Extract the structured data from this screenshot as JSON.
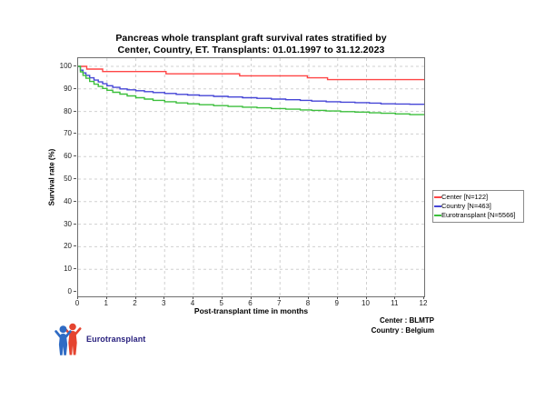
{
  "title": {
    "line1": "Pancreas whole transplant graft survival rates stratified by",
    "line2": "Center, Country, ET. Transplants: 01.01.1997 to 31.12.2023"
  },
  "axes": {
    "x": {
      "label": "Post-transplant time in months",
      "min": 0,
      "max": 12,
      "ticks": [
        0,
        1,
        2,
        3,
        4,
        5,
        6,
        7,
        8,
        9,
        10,
        11,
        12
      ]
    },
    "y": {
      "label": "Survival rate (%)",
      "min": 0,
      "max": 100,
      "ticks": [
        0,
        10,
        20,
        30,
        40,
        50,
        60,
        70,
        80,
        90,
        100
      ]
    }
  },
  "footer": {
    "center": "Center : BLMTP",
    "country": "Country : Belgium",
    "logo_text": "Eurotransplant"
  },
  "colors": {
    "center": "#ff4545",
    "country": "#4545d6",
    "eurotransplant": "#3cbf3c",
    "grid": "#d0d0d0",
    "frame": "#6f6f6f",
    "logo_blue": "#2f6bc4",
    "logo_red": "#e54430",
    "logo_text": "#29217e"
  },
  "chart_data": {
    "type": "line",
    "subtype": "kaplan-meier-step",
    "title": "Pancreas whole transplant graft survival rates stratified by Center, Country, ET. Transplants: 01.01.1997 to 31.12.2023",
    "xlabel": "Post-transplant time in months",
    "ylabel": "Survival rate (%)",
    "xlim": [
      0,
      12
    ],
    "ylim": [
      0,
      100
    ],
    "grid": "dashed",
    "legend_position": "right-outside",
    "series": [
      {
        "name": "Center",
        "label": "Center [N=122]",
        "n": 122,
        "color": "#ff4545",
        "points": [
          [
            0,
            100
          ],
          [
            0.3,
            98.8
          ],
          [
            0.85,
            97.7
          ],
          [
            3.05,
            96.7
          ],
          [
            5.6,
            95.8
          ],
          [
            7.95,
            94.9
          ],
          [
            8.65,
            94.1
          ],
          [
            12,
            94.1
          ]
        ]
      },
      {
        "name": "Country",
        "label": "Country [N=463]",
        "n": 463,
        "color": "#4545d6",
        "points": [
          [
            0,
            100
          ],
          [
            0.08,
            98.3
          ],
          [
            0.17,
            97.1
          ],
          [
            0.27,
            96.0
          ],
          [
            0.4,
            94.9
          ],
          [
            0.55,
            93.9
          ],
          [
            0.7,
            93.1
          ],
          [
            0.85,
            92.3
          ],
          [
            1.0,
            91.4
          ],
          [
            1.2,
            90.7
          ],
          [
            1.45,
            90.0
          ],
          [
            1.7,
            89.6
          ],
          [
            2.0,
            89.2
          ],
          [
            2.3,
            88.8
          ],
          [
            2.6,
            88.4
          ],
          [
            3.0,
            88.0
          ],
          [
            3.4,
            87.6
          ],
          [
            3.8,
            87.3
          ],
          [
            4.2,
            87.0
          ],
          [
            4.7,
            86.7
          ],
          [
            5.2,
            86.4
          ],
          [
            5.7,
            86.1
          ],
          [
            6.2,
            85.8
          ],
          [
            6.7,
            85.5
          ],
          [
            7.2,
            85.2
          ],
          [
            7.7,
            84.9
          ],
          [
            8.1,
            84.6
          ],
          [
            8.6,
            84.3
          ],
          [
            9.1,
            84.1
          ],
          [
            9.6,
            83.9
          ],
          [
            10.1,
            83.7
          ],
          [
            10.5,
            83.4
          ],
          [
            11.0,
            83.3
          ],
          [
            11.5,
            83.2
          ],
          [
            12,
            83.1
          ]
        ]
      },
      {
        "name": "Eurotransplant",
        "label": "Eurotransplant [N=5566]",
        "n": 5566,
        "color": "#3cbf3c",
        "points": [
          [
            0,
            100
          ],
          [
            0.08,
            97.6
          ],
          [
            0.17,
            96.0
          ],
          [
            0.27,
            94.7
          ],
          [
            0.4,
            93.3
          ],
          [
            0.55,
            92.1
          ],
          [
            0.7,
            91.1
          ],
          [
            0.85,
            90.2
          ],
          [
            1.0,
            89.4
          ],
          [
            1.2,
            88.5
          ],
          [
            1.45,
            87.7
          ],
          [
            1.7,
            86.9
          ],
          [
            2.0,
            86.1
          ],
          [
            2.3,
            85.5
          ],
          [
            2.6,
            84.9
          ],
          [
            3.0,
            84.3
          ],
          [
            3.4,
            83.8
          ],
          [
            3.8,
            83.4
          ],
          [
            4.2,
            83.0
          ],
          [
            4.7,
            82.6
          ],
          [
            5.2,
            82.2
          ],
          [
            5.7,
            81.9
          ],
          [
            6.2,
            81.6
          ],
          [
            6.7,
            81.3
          ],
          [
            7.2,
            81.0
          ],
          [
            7.7,
            80.7
          ],
          [
            8.1,
            80.5
          ],
          [
            8.6,
            80.2
          ],
          [
            9.1,
            79.9
          ],
          [
            9.6,
            79.7
          ],
          [
            10.1,
            79.4
          ],
          [
            10.5,
            79.2
          ],
          [
            11.0,
            78.9
          ],
          [
            11.5,
            78.6
          ],
          [
            12,
            78.4
          ]
        ]
      }
    ]
  }
}
